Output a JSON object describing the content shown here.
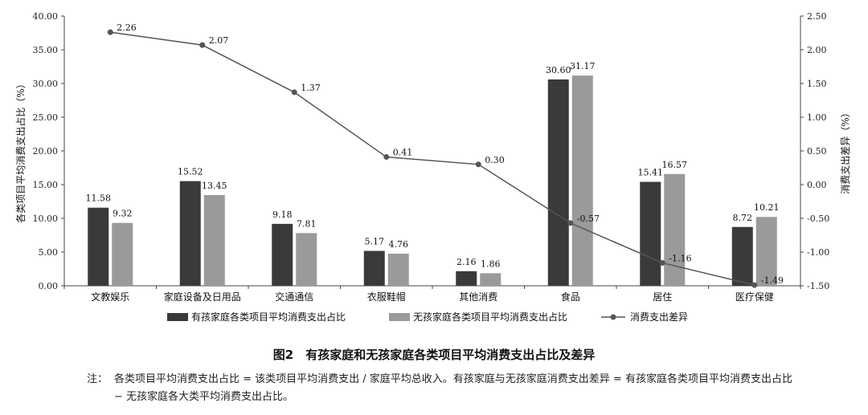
{
  "chart_data": {
    "type": "bar",
    "categories": [
      "文教娱乐",
      "家庭设备及日用品",
      "交通通信",
      "衣服鞋帽",
      "其他消费",
      "食品",
      "居住",
      "医疗保健"
    ],
    "series": [
      {
        "name": "有孩家庭各类项目平均消费支出占比",
        "type": "bar",
        "axis": "left",
        "color": "#3a3a3a",
        "values": [
          11.58,
          15.52,
          9.18,
          5.17,
          2.16,
          30.6,
          15.41,
          8.72
        ],
        "labels": [
          "11.58",
          "15.52",
          "9.18",
          "5.17",
          "2.16",
          "30.60",
          "15.41",
          "8.72"
        ]
      },
      {
        "name": "无孩家庭各类项目平均消费支出占比",
        "type": "bar",
        "axis": "left",
        "color": "#9a9a9a",
        "values": [
          9.32,
          13.45,
          7.81,
          4.76,
          1.86,
          31.17,
          16.57,
          10.21
        ],
        "labels": [
          "9.32",
          "13.45",
          "7.81",
          "4.76",
          "1.86",
          "31.17",
          "16.57",
          "10.21"
        ]
      },
      {
        "name": "消费支出差异",
        "type": "line",
        "axis": "right",
        "color": "#555555",
        "values": [
          2.26,
          2.07,
          1.37,
          0.41,
          0.3,
          -0.57,
          -1.16,
          -1.49
        ],
        "labels": [
          "2.26",
          "2.07",
          "1.37",
          "0.41",
          "0.30",
          "-0.57",
          "-1.16",
          "-1.49"
        ]
      }
    ],
    "ylabel": "各类项目平均消费支出占比（%）",
    "y2label": "消费支出差异（%）",
    "ylim": [
      0,
      40
    ],
    "y2lim": [
      -1.5,
      2.5
    ],
    "yticks": [
      "0.00",
      "5.00",
      "10.00",
      "15.00",
      "20.00",
      "25.00",
      "30.00",
      "35.00",
      "40.00"
    ],
    "y2ticks": [
      "-1.50",
      "-1.00",
      "-0.50",
      "0.00",
      "0.50",
      "1.00",
      "1.50",
      "2.00",
      "2.50"
    ],
    "grid": false,
    "legend_position": "bottom"
  },
  "figure": {
    "title": "图2　有孩家庭和无孩家庭各类项目平均消费支出占比及差异",
    "note_label": "注：",
    "note_text": "各类项目平均消费支出占比 = 该类项目平均消费支出 / 家庭平均总收入。有孩家庭与无孩家庭消费支出差异 = 有孩家庭各类项目平均消费支出占比 − 无孩家庭各大类平均消费支出占比。"
  }
}
